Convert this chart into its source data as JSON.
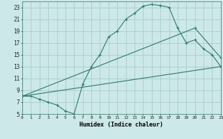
{
  "xlabel": "Humidex (Indice chaleur)",
  "bg_color": "#cce8e8",
  "grid_color": "#aacccc",
  "line_color": "#2a7a6a",
  "xlim": [
    0,
    23
  ],
  "ylim": [
    5,
    24
  ],
  "xticks": [
    0,
    1,
    2,
    3,
    4,
    5,
    6,
    7,
    8,
    9,
    10,
    11,
    12,
    13,
    14,
    15,
    16,
    17,
    18,
    19,
    20,
    21,
    22,
    23
  ],
  "yticks": [
    5,
    7,
    9,
    11,
    13,
    15,
    17,
    19,
    21,
    23
  ],
  "curve1_x": [
    0,
    1,
    2,
    3,
    4,
    5,
    6,
    7,
    8,
    9,
    10,
    11,
    12,
    13,
    14,
    15,
    16,
    17,
    18,
    19,
    20,
    21,
    22,
    23
  ],
  "curve1_y": [
    8,
    8,
    7.5,
    7,
    6.5,
    5.5,
    5,
    10,
    13,
    15,
    18,
    19,
    21,
    22,
    23.2,
    23.5,
    23.3,
    23,
    19.5,
    17,
    17.5,
    16,
    15,
    13
  ],
  "curve2_x": [
    0,
    23
  ],
  "curve2_y": [
    8,
    13
  ],
  "curve3_x": [
    0,
    20,
    23
  ],
  "curve3_y": [
    8,
    19.5,
    14.5
  ]
}
